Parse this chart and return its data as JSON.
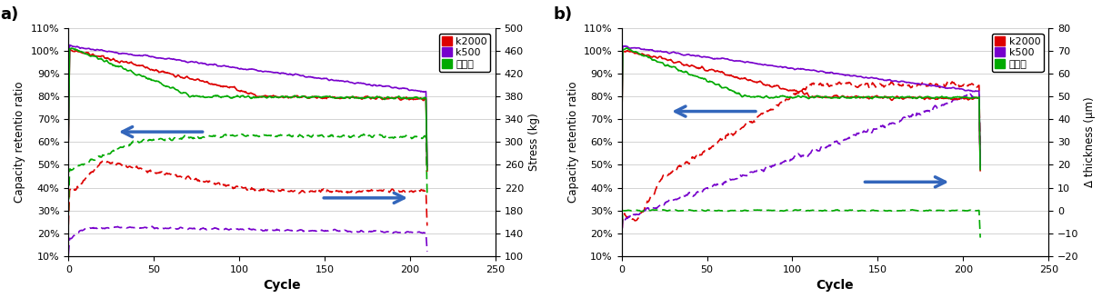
{
  "panel_a": {
    "xlabel": "Cycle",
    "ylabel_left": "Capacity retentio ratio",
    "ylabel_right": "Stress (kg)",
    "xlim": [
      0,
      250
    ],
    "ylim_left": [
      0.1,
      1.1
    ],
    "ylim_right": [
      100,
      500
    ],
    "yticks_left": [
      0.1,
      0.2,
      0.3,
      0.4,
      0.5,
      0.6,
      0.7,
      0.8,
      0.9,
      1.0,
      1.1
    ],
    "yticks_right": [
      100,
      140,
      180,
      220,
      260,
      300,
      340,
      380,
      420,
      460,
      500
    ],
    "xticks": [
      0,
      50,
      100,
      150,
      200,
      250
    ],
    "legend_labels": [
      "k2000",
      "k500",
      "恒间隙"
    ],
    "legend_colors": [
      "#dd0000",
      "#7700cc",
      "#00aa00"
    ]
  },
  "panel_b": {
    "xlabel": "Cycle",
    "ylabel_left": "Capacity retentio ratio",
    "ylabel_right": "Δ thickness (μm)",
    "xlim": [
      0,
      250
    ],
    "ylim_left": [
      0.1,
      1.1
    ],
    "ylim_right": [
      -20,
      80
    ],
    "yticks_left": [
      0.1,
      0.2,
      0.3,
      0.4,
      0.5,
      0.6,
      0.7,
      0.8,
      0.9,
      1.0,
      1.1
    ],
    "yticks_right": [
      -20,
      -10,
      0,
      10,
      20,
      30,
      40,
      50,
      60,
      70,
      80
    ],
    "xticks": [
      0,
      50,
      100,
      150,
      200,
      250
    ],
    "legend_labels": [
      "k2000",
      "k500",
      "恒间隙"
    ],
    "legend_colors": [
      "#dd0000",
      "#7700cc",
      "#00aa00"
    ]
  }
}
